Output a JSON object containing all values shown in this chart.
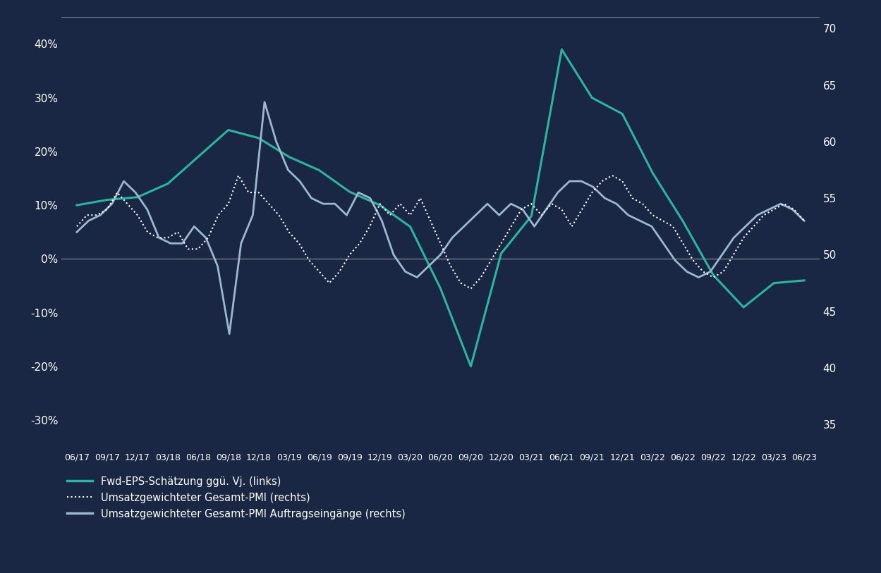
{
  "bg_color": "#1a2744",
  "text_color": "#ffffff",
  "grid_color": "#2a3a60",
  "teal_color": "#2ab5a0",
  "light_blue_color": "#9ab8d0",
  "white_color": "#ffffff",
  "x_labels": [
    "06/17",
    "09/17",
    "12/17",
    "03/18",
    "06/18",
    "09/18",
    "12/18",
    "03/19",
    "06/19",
    "09/19",
    "12/19",
    "03/20",
    "06/20",
    "09/20",
    "12/20",
    "03/21",
    "06/21",
    "09/21",
    "12/21",
    "03/22",
    "06/22",
    "09/22",
    "12/22",
    "03/23",
    "06/23"
  ],
  "left_ylim": [
    -0.35,
    0.45
  ],
  "right_ylim": [
    33,
    71
  ],
  "left_yticks": [
    -0.3,
    -0.2,
    -0.1,
    0.0,
    0.1,
    0.2,
    0.3,
    0.4
  ],
  "left_yticklabels": [
    "-30%",
    "-20%",
    "-10%",
    "0%",
    "10%",
    "20%",
    "30%",
    "40%"
  ],
  "right_yticks": [
    35,
    40,
    45,
    50,
    55,
    60,
    65,
    70
  ],
  "eps_y": [
    0.1,
    0.11,
    0.115,
    0.14,
    0.19,
    0.24,
    0.225,
    0.19,
    0.165,
    0.125,
    0.1,
    0.06,
    -0.055,
    -0.2,
    0.01,
    0.08,
    0.39,
    0.3,
    0.27,
    0.16,
    0.07,
    -0.03,
    -0.09,
    -0.045,
    -0.04
  ],
  "pmi_dotted_y": [
    52.5,
    53.5,
    53.5,
    54.0,
    55.5,
    54.5,
    53.5,
    52.0,
    51.5,
    51.5,
    52.0,
    50.5,
    50.5,
    51.5,
    53.5,
    54.5,
    57.0,
    55.5,
    55.5,
    54.5,
    53.5,
    52.0,
    51.0,
    49.5,
    48.5,
    47.5,
    48.5,
    50.0,
    51.0,
    52.5,
    54.5,
    53.5,
    54.5,
    53.5,
    55.0,
    53.0,
    51.0,
    49.0,
    47.5,
    47.0,
    48.0,
    49.5,
    51.0,
    52.5,
    54.0,
    54.5,
    53.5,
    54.5,
    54.0,
    52.5,
    54.0,
    55.5,
    56.5,
    57.0,
    56.5,
    55.0,
    54.5,
    53.5,
    53.0,
    52.5,
    51.0,
    49.5,
    48.5,
    48.0,
    48.5,
    50.0,
    51.5,
    52.5,
    53.5,
    54.0,
    54.5,
    54.0,
    53.0
  ],
  "pmi_solid_y": [
    52.0,
    53.0,
    53.5,
    54.5,
    56.5,
    55.5,
    54.0,
    51.5,
    51.0,
    51.0,
    52.5,
    51.5,
    49.0,
    43.0,
    51.0,
    53.5,
    63.5,
    60.0,
    57.5,
    56.5,
    55.0,
    54.5,
    54.5,
    53.5,
    55.5,
    55.0,
    53.0,
    50.0,
    48.5,
    48.0,
    49.0,
    50.0,
    51.5,
    52.5,
    53.5,
    54.5,
    53.5,
    54.5,
    54.0,
    52.5,
    54.0,
    55.5,
    56.5,
    56.5,
    56.0,
    55.0,
    54.5,
    53.5,
    53.0,
    52.5,
    51.0,
    49.5,
    48.5,
    48.0,
    48.5,
    50.0,
    51.5,
    52.5,
    53.5,
    54.0,
    54.5,
    54.0,
    53.0
  ],
  "legend_labels": [
    "Fwd-EPS-Schätzung ggü. Vj. (links)",
    "Umsatzgewichteter Gesamt-PMI (rechts)",
    "Umsatzgewichteter Gesamt-PMI Auftragseingänge (rechts)"
  ]
}
